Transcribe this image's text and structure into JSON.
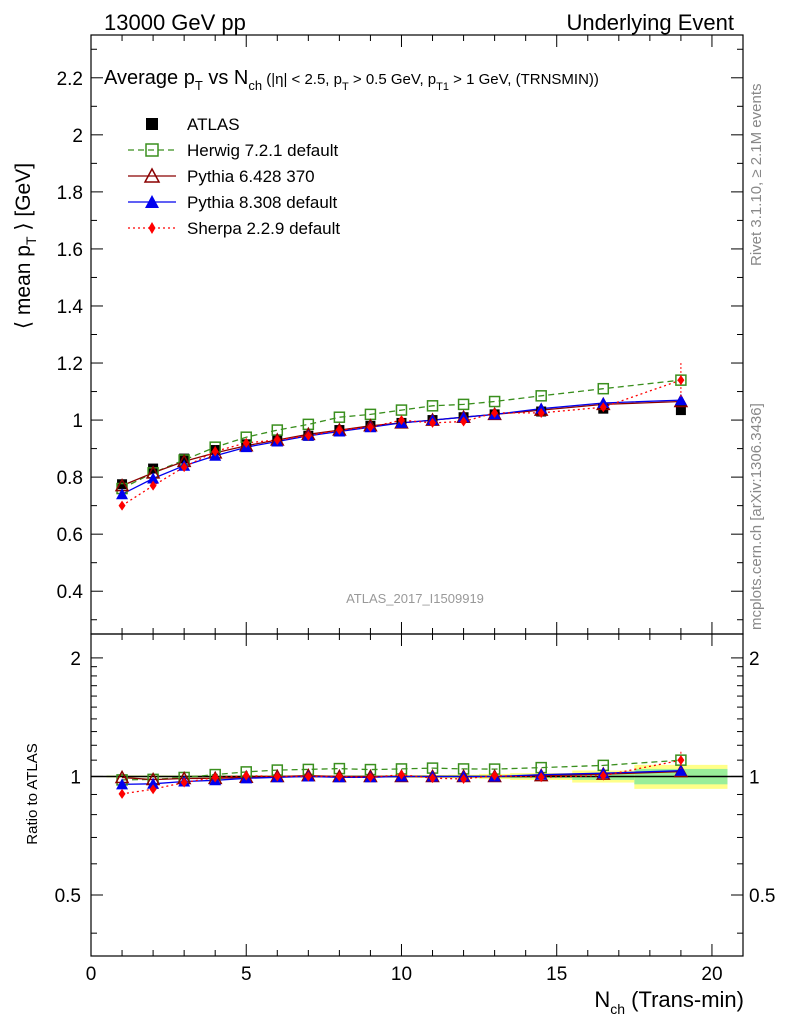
{
  "header": {
    "left": "13000 GeV pp",
    "right": "Underlying Event"
  },
  "side_labels": {
    "rivet": "Rivet 3.1.10, ≥ 2.1M events",
    "mcplots": "mcplots.cern.ch [arXiv:1306.3436]"
  },
  "watermark": "ATLAS_2017_I1509919",
  "chart_data": [
    {
      "type": "scatter",
      "panel": "main",
      "title": "Average pT vs Nch (|η| < 2.5, pT > 0.5 GeV, pT1 > 1 GeV, (TRNSMIN))",
      "title_parts": {
        "a": "Average p",
        "a_sub": "T",
        "b": " vs N",
        "b_sub": "ch",
        "c": " (|η| < 2.5, p",
        "c_sub": "T",
        "d": " > 0.5 GeV, p",
        "d_sub": "T1",
        "e": " > 1 GeV, (TRNSMIN))"
      },
      "ylabel": "⟨ mean pT ⟩ [GeV]",
      "ylabel_parts": {
        "a": "⟨ mean p",
        "sub": "T",
        "b": " ⟩ [GeV]"
      },
      "xlim": [
        0,
        21
      ],
      "ylim": [
        0.25,
        2.35
      ],
      "yticks": [
        0.4,
        0.6,
        0.8,
        1,
        1.2,
        1.4,
        1.6,
        1.8,
        2,
        2.2
      ],
      "ytick_labels": [
        "0.4",
        "0.6",
        "0.8",
        "1",
        "1.2",
        "1.4",
        "1.6",
        "1.8",
        "2",
        "2.2"
      ],
      "legend_position": "top-left",
      "series": [
        {
          "name": "ATLAS",
          "color": "#000000",
          "marker": "square-filled",
          "line": "none",
          "x": [
            1,
            2,
            3,
            4,
            5,
            6,
            7,
            8,
            9,
            10,
            11,
            12,
            13,
            14.5,
            16.5,
            19
          ],
          "y": [
            0.775,
            0.83,
            0.865,
            0.895,
            0.915,
            0.93,
            0.945,
            0.965,
            0.98,
            0.99,
            1.0,
            1.01,
            1.02,
            1.03,
            1.04,
            1.035
          ]
        },
        {
          "name": "Herwig 7.2.1 default",
          "color": "#3a8f1e",
          "marker": "square-open",
          "line": "dashed",
          "x": [
            1,
            2,
            3,
            4,
            5,
            6,
            7,
            8,
            9,
            10,
            11,
            12,
            13,
            14.5,
            16.5,
            19
          ],
          "y": [
            0.76,
            0.815,
            0.86,
            0.905,
            0.94,
            0.965,
            0.985,
            1.01,
            1.02,
            1.035,
            1.05,
            1.055,
            1.065,
            1.085,
            1.11,
            1.14
          ]
        },
        {
          "name": "Pythia 6.428 370",
          "color": "#8b0000",
          "marker": "triangle-open",
          "line": "solid",
          "x": [
            1,
            2,
            3,
            4,
            5,
            6,
            7,
            8,
            9,
            10,
            11,
            12,
            13,
            14.5,
            16.5,
            19
          ],
          "y": [
            0.77,
            0.815,
            0.855,
            0.885,
            0.91,
            0.93,
            0.95,
            0.965,
            0.98,
            0.99,
            1.0,
            1.01,
            1.02,
            1.035,
            1.055,
            1.065
          ]
        },
        {
          "name": "Pythia 8.308 default",
          "color": "#0000ee",
          "marker": "triangle-filled",
          "line": "solid",
          "x": [
            1,
            2,
            3,
            4,
            5,
            6,
            7,
            8,
            9,
            10,
            11,
            12,
            13,
            14.5,
            16.5,
            19
          ],
          "y": [
            0.74,
            0.795,
            0.84,
            0.875,
            0.905,
            0.925,
            0.945,
            0.96,
            0.975,
            0.99,
            1.0,
            1.01,
            1.02,
            1.04,
            1.06,
            1.07
          ]
        },
        {
          "name": "Sherpa 2.2.9 default",
          "color": "#ff0000",
          "marker": "diamond-filled",
          "line": "dotted",
          "x": [
            1,
            2,
            3,
            4,
            5,
            6,
            7,
            8,
            9,
            10,
            11,
            12,
            13,
            14.5,
            16.5,
            19
          ],
          "y": [
            0.7,
            0.77,
            0.835,
            0.89,
            0.92,
            0.93,
            0.945,
            0.965,
            0.975,
            1.0,
            0.99,
            0.995,
            1.025,
            1.025,
            1.045,
            1.14
          ],
          "yerr": [
            0,
            0,
            0,
            0,
            0,
            0,
            0,
            0,
            0,
            0,
            0,
            0,
            0,
            0,
            0,
            0.06
          ]
        }
      ]
    },
    {
      "type": "scatter",
      "panel": "ratio",
      "ylabel": "Ratio to ATLAS",
      "xlabel": "Nch (Trans-min)",
      "xlabel_parts": {
        "a": "N",
        "sub": "ch",
        "b": " (Trans-min)"
      },
      "xlim": [
        0,
        21
      ],
      "xticks": [
        0,
        5,
        10,
        15,
        20
      ],
      "xtick_labels": [
        "0",
        "5",
        "10",
        "15",
        "20"
      ],
      "ylim": [
        0.35,
        2.3
      ],
      "yscale": "log",
      "yticks": [
        0.5,
        1,
        2
      ],
      "ytick_labels": [
        "0.5",
        "1",
        "2"
      ],
      "reference_line": 1,
      "uncertainty_bands": {
        "bins": [
          [
            0.5,
            1.5
          ],
          [
            1.5,
            2.5
          ],
          [
            2.5,
            3.5
          ],
          [
            3.5,
            4.5
          ],
          [
            4.5,
            5.5
          ],
          [
            5.5,
            6.5
          ],
          [
            6.5,
            7.5
          ],
          [
            7.5,
            8.5
          ],
          [
            8.5,
            9.5
          ],
          [
            9.5,
            10.5
          ],
          [
            10.5,
            11.5
          ],
          [
            11.5,
            12.5
          ],
          [
            12.5,
            13.5
          ],
          [
            13.5,
            15.5
          ],
          [
            15.5,
            17.5
          ],
          [
            17.5,
            20.5
          ]
        ],
        "stat_half_width": [
          0.004,
          0.004,
          0.004,
          0.004,
          0.004,
          0.004,
          0.004,
          0.004,
          0.004,
          0.004,
          0.004,
          0.005,
          0.006,
          0.01,
          0.02,
          0.045
        ],
        "total_half_width": [
          0.006,
          0.006,
          0.006,
          0.006,
          0.006,
          0.006,
          0.006,
          0.006,
          0.006,
          0.007,
          0.008,
          0.01,
          0.015,
          0.02,
          0.035,
          0.07
        ],
        "stat_color": "#99ee99",
        "total_color": "#ffff88"
      },
      "series": [
        {
          "name": "Herwig 7.2.1 default",
          "x": [
            1,
            2,
            3,
            4,
            5,
            6,
            7,
            8,
            9,
            10,
            11,
            12,
            13,
            14.5,
            16.5,
            19
          ],
          "y": [
            0.98,
            0.983,
            0.994,
            1.011,
            1.027,
            1.038,
            1.042,
            1.047,
            1.041,
            1.045,
            1.05,
            1.045,
            1.044,
            1.053,
            1.067,
            1.1
          ]
        },
        {
          "name": "Pythia 6.428 370",
          "x": [
            1,
            2,
            3,
            4,
            5,
            6,
            7,
            8,
            9,
            10,
            11,
            12,
            13,
            14.5,
            16.5,
            19
          ],
          "y": [
            0.994,
            0.982,
            0.988,
            0.989,
            0.995,
            1.0,
            1.005,
            1.0,
            1.0,
            1.0,
            1.0,
            1.0,
            1.0,
            1.005,
            1.014,
            1.029
          ]
        },
        {
          "name": "Pythia 8.308 default",
          "x": [
            1,
            2,
            3,
            4,
            5,
            6,
            7,
            8,
            9,
            10,
            11,
            12,
            13,
            14.5,
            16.5,
            19
          ],
          "y": [
            0.955,
            0.958,
            0.971,
            0.978,
            0.989,
            0.995,
            1.0,
            0.995,
            0.995,
            1.0,
            1.0,
            1.0,
            1.0,
            1.01,
            1.019,
            1.034
          ]
        },
        {
          "name": "Sherpa 2.2.9 default",
          "x": [
            1,
            2,
            3,
            4,
            5,
            6,
            7,
            8,
            9,
            10,
            11,
            12,
            13,
            14.5,
            16.5,
            19
          ],
          "y": [
            0.903,
            0.928,
            0.965,
            0.994,
            1.005,
            1.0,
            1.0,
            1.0,
            0.995,
            1.01,
            0.99,
            0.985,
            1.005,
            0.995,
            1.005,
            1.1
          ],
          "yerr": [
            0,
            0,
            0,
            0,
            0,
            0,
            0,
            0,
            0,
            0,
            0,
            0,
            0,
            0,
            0,
            0.055
          ]
        }
      ]
    }
  ]
}
